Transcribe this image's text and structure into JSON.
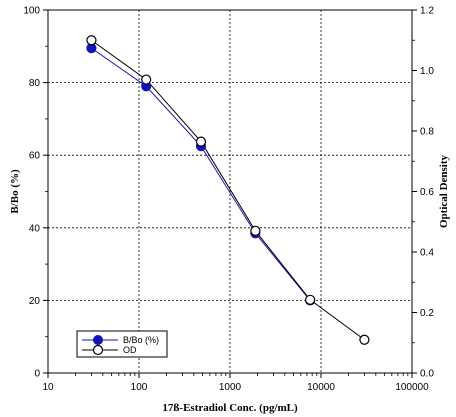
{
  "chart_data": {
    "type": "line",
    "xlabel": "17ß-Estradiol Conc. (pg/mL)",
    "ylabel": "B/Bo (%)",
    "y2label": "Optical Density",
    "x_scale": "log",
    "xlim": [
      10,
      100000
    ],
    "ylim": [
      0,
      100
    ],
    "y2lim": [
      0,
      1.2
    ],
    "x_ticks": [
      10,
      100,
      1000,
      10000,
      100000
    ],
    "x_tick_labels": [
      "10",
      "100",
      "1000",
      "10000",
      "100000"
    ],
    "y_ticks": [
      0,
      20,
      40,
      60,
      80,
      100
    ],
    "y_tick_labels": [
      "0",
      "20",
      "40",
      "60",
      "80",
      "100"
    ],
    "y2_ticks": [
      0,
      0.2,
      0.4,
      0.6,
      0.8,
      1.0,
      1.2
    ],
    "y2_tick_labels": [
      "0.0",
      "0.2",
      "0.4",
      "0.6",
      "0.8",
      "1.0",
      "1.2"
    ],
    "grid": true,
    "legend_position": "bottom-left",
    "series": [
      {
        "name": "B/Bo (%)",
        "axis": "left",
        "marker": "filled-circle",
        "color": "#1414b4",
        "x": [
          30,
          120,
          480,
          1900,
          7600
        ],
        "y": [
          89.5,
          79,
          62.5,
          38.5,
          20
        ]
      },
      {
        "name": "OD",
        "axis": "right",
        "marker": "open-circle",
        "color": "#000000",
        "x": [
          30,
          120,
          480,
          1900,
          7600,
          30000
        ],
        "y": [
          1.1,
          0.97,
          0.765,
          0.47,
          0.242,
          0.11
        ]
      }
    ]
  }
}
